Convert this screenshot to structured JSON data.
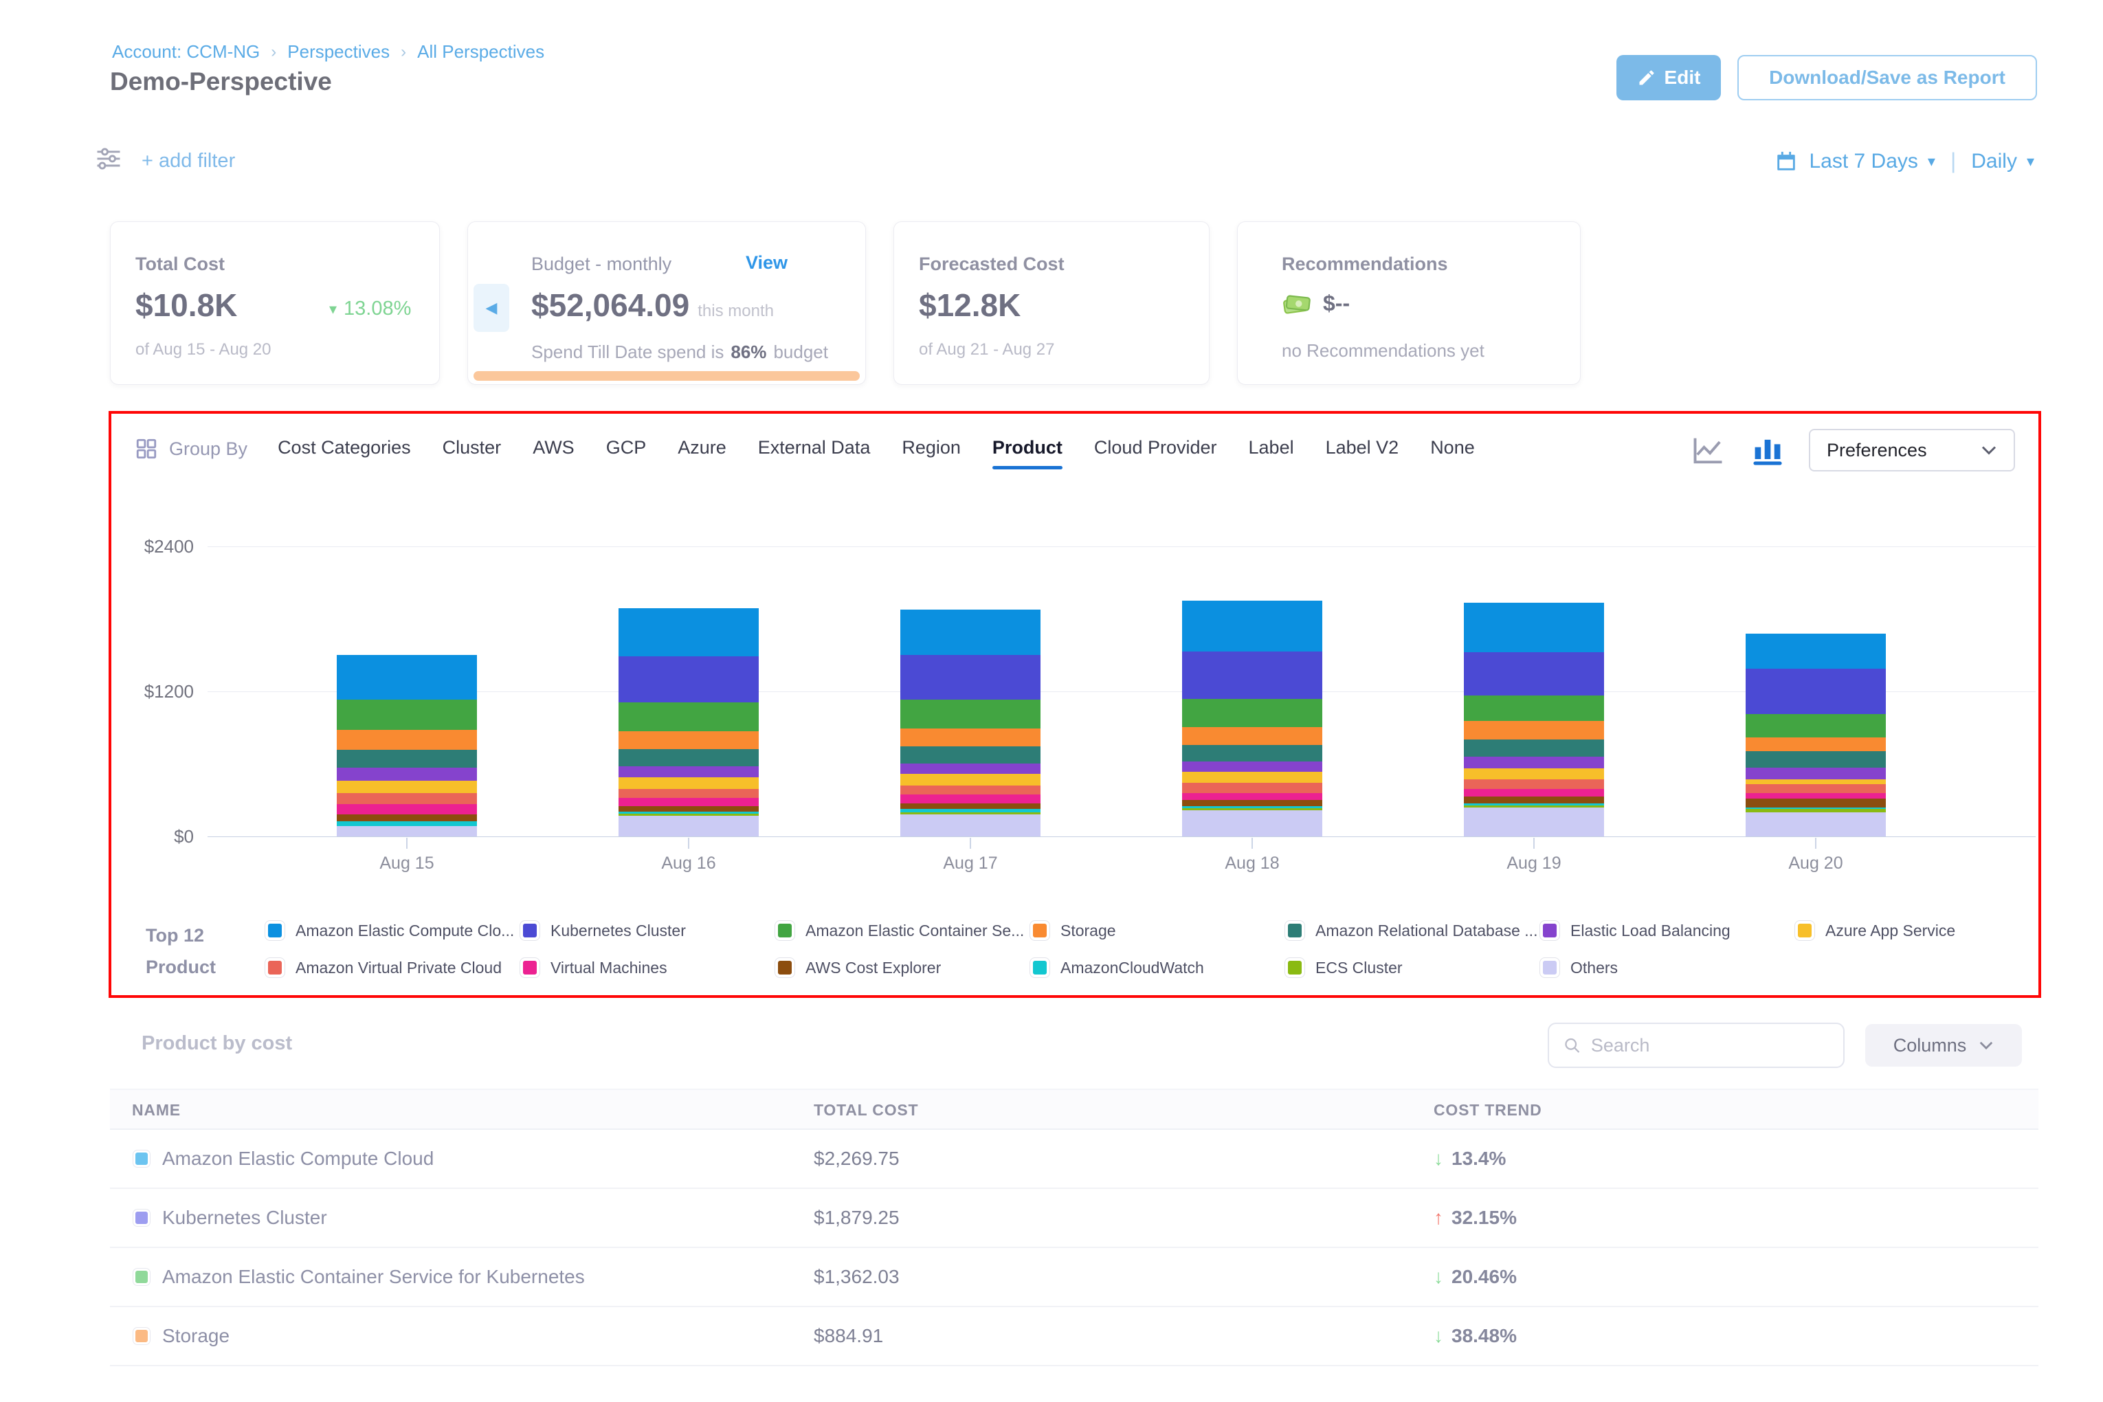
{
  "header": {
    "breadcrumb": [
      "Account: CCM-NG",
      "Perspectives",
      "All Perspectives"
    ],
    "title": "Demo-Perspective",
    "edit_button": "Edit",
    "download_button": "Download/Save as Report"
  },
  "filter_bar": {
    "add_filter": "+ add filter",
    "time_range": "Last 7 Days",
    "granularity": "Daily"
  },
  "cards": {
    "total_cost": {
      "label": "Total Cost",
      "value": "$10.8K",
      "delta": "13.08%",
      "delta_direction": "down",
      "period": "of Aug 15 - Aug 20"
    },
    "budget": {
      "label": "Budget - monthly",
      "view_link": "View",
      "value": "$52,064.09",
      "value_suffix": "this month",
      "spend_prefix": "Spend Till Date spend is",
      "spend_pct": "86%",
      "spend_suffix": "budget",
      "progress_color": "#fbc79b"
    },
    "forecasted": {
      "label": "Forecasted Cost",
      "value": "$12.8K",
      "period": "of Aug 21 - Aug 27"
    },
    "recommendations": {
      "label": "Recommendations",
      "value": "$--",
      "note": "no Recommendations yet"
    }
  },
  "group_by": {
    "label": "Group By",
    "tabs": [
      "Cost Categories",
      "Cluster",
      "AWS",
      "GCP",
      "Azure",
      "External Data",
      "Region",
      "Product",
      "Cloud Provider",
      "Label",
      "Label V2",
      "None"
    ],
    "active_tab": "Product",
    "preferences_label": "Preferences"
  },
  "chart_data": {
    "type": "bar",
    "stacked": true,
    "title": "",
    "xlabel": "",
    "ylabel": "",
    "categories": [
      "Aug 15",
      "Aug 16",
      "Aug 17",
      "Aug 18",
      "Aug 19",
      "Aug 20"
    ],
    "y_ticks": [
      "$0",
      "$1200",
      "$2400"
    ],
    "y_tick_values": [
      0,
      1200,
      2400
    ],
    "ylim": [
      0,
      2400
    ],
    "grid": true,
    "legend_position": "bottom",
    "legend_title_lines": [
      "Top 12",
      "Product"
    ],
    "series": [
      {
        "name": "Amazon Elastic Compute Clo...",
        "color": "#0b90e0",
        "values": [
          370,
          400,
          380,
          420,
          410,
          290
        ]
      },
      {
        "name": "Kubernetes Cluster",
        "color": "#4b4ad4",
        "values": [
          0,
          380,
          370,
          390,
          360,
          380
        ]
      },
      {
        "name": "Amazon Elastic Container Se...",
        "color": "#42a542",
        "values": [
          250,
          240,
          235,
          235,
          210,
          190
        ]
      },
      {
        "name": "Storage",
        "color": "#f98a31",
        "values": [
          165,
          150,
          150,
          150,
          155,
          115
        ]
      },
      {
        "name": "Amazon Relational Database ...",
        "color": "#2d7d76",
        "values": [
          145,
          140,
          140,
          135,
          140,
          135
        ]
      },
      {
        "name": "Elastic Load Balancing",
        "color": "#8543cd",
        "values": [
          107,
          90,
          90,
          85,
          95,
          95
        ]
      },
      {
        "name": "Azure App Service",
        "color": "#f7bf2a",
        "values": [
          107,
          95,
          95,
          90,
          90,
          45
        ]
      },
      {
        "name": "Amazon Virtual Private Cloud",
        "color": "#ea6558",
        "values": [
          87,
          75,
          75,
          85,
          80,
          70
        ]
      },
      {
        "name": "Virtual Machines",
        "color": "#ec2191",
        "values": [
          87,
          70,
          70,
          60,
          65,
          45
        ]
      },
      {
        "name": "AWS Cost Explorer",
        "color": "#8c4d0e",
        "values": [
          57,
          45,
          50,
          50,
          55,
          75
        ]
      },
      {
        "name": "AmazonCloudWatch",
        "color": "#12c7d0",
        "values": [
          38,
          20,
          25,
          15,
          20,
          15
        ]
      },
      {
        "name": "ECS Cluster",
        "color": "#8aba12",
        "values": [
          0,
          15,
          20,
          20,
          15,
          25
        ]
      },
      {
        "name": "Others",
        "color": "#cbcbf4",
        "values": [
          87,
          170,
          180,
          215,
          240,
          200
        ]
      }
    ],
    "stack_order": "bottom-is-last-series"
  },
  "table": {
    "title": "Product by cost",
    "search_placeholder": "Search",
    "columns_button": "Columns",
    "headers": [
      "NAME",
      "TOTAL COST",
      "COST TREND"
    ],
    "rows": [
      {
        "name": "Amazon Elastic Compute Cloud",
        "swatch": "#6cc4f0",
        "total_cost": "$2,269.75",
        "trend": "13.4%",
        "trend_dir": "down"
      },
      {
        "name": "Kubernetes Cluster",
        "swatch": "#9d9df0",
        "total_cost": "$1,879.25",
        "trend": "32.15%",
        "trend_dir": "up"
      },
      {
        "name": "Amazon Elastic Container Service for Kubernetes",
        "swatch": "#90d99a",
        "total_cost": "$1,362.03",
        "trend": "20.46%",
        "trend_dir": "down"
      },
      {
        "name": "Storage",
        "swatch": "#fbba84",
        "total_cost": "$884.91",
        "trend": "38.48%",
        "trend_dir": "down"
      }
    ]
  },
  "colors": {
    "accent_blue": "#58a9e4",
    "link_blue": "#2f96e8",
    "positive_green": "#7ed492",
    "negative_red": "#f2766c",
    "annotation_red": "#ff0606",
    "active_tab_underline": "#1a73d4"
  }
}
